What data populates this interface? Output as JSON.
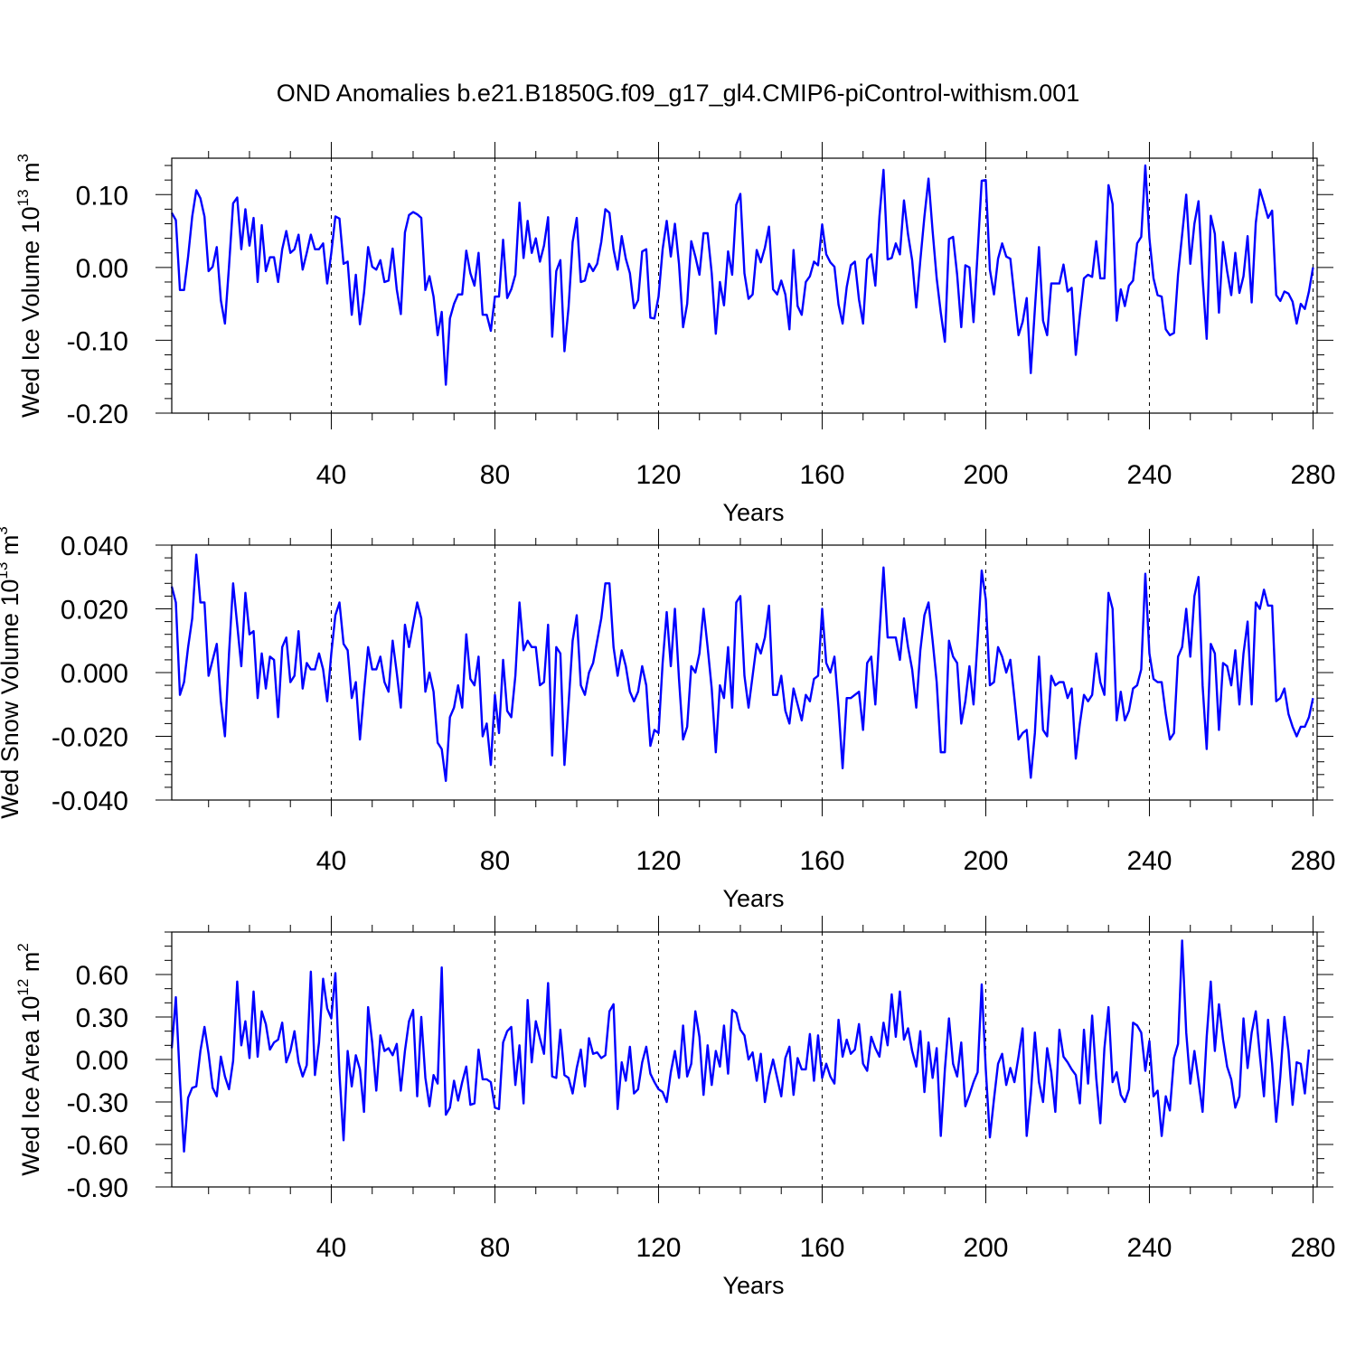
{
  "title": "OND Anomalies b.e21.B1850G.f09_g17_gl4.CMIP6-piControl-withism.001",
  "colors": {
    "line": "#0000ff",
    "axis": "#000000",
    "background": "#ffffff"
  },
  "chart_data": [
    {
      "type": "line",
      "ylabel": "Wed Ice Volume 10",
      "ylabel_exp": "13",
      "ylabel_unit": " m",
      "ylabel_unit_exp": "3",
      "xlabel": "Years",
      "xlim": [
        1,
        281
      ],
      "ylim": [
        -0.2,
        0.15
      ],
      "xticks": [
        40,
        80,
        120,
        160,
        200,
        240,
        280
      ],
      "xtick_labels": [
        "40",
        "80",
        "120",
        "160",
        "200",
        "240",
        "280"
      ],
      "yticks": [
        -0.2,
        -0.1,
        0.0,
        0.1
      ],
      "ytick_labels": [
        "-0.20",
        "-0.10",
        "0.00",
        "0.10"
      ],
      "y_minor_step": 0.02,
      "x_minor_step": 10,
      "grid": "vertical dashed at major x ticks",
      "series": [
        {
          "name": "Wed Ice Volume",
          "x_start": 1,
          "values": [
            0.075,
            0.065,
            -0.031,
            -0.031,
            0.015,
            0.07,
            0.106,
            0.095,
            0.07,
            -0.005,
            0.001,
            0.028,
            -0.045,
            -0.077,
            0.002,
            0.088,
            0.096,
            0.025,
            0.08,
            0.03,
            0.068,
            -0.02,
            0.058,
            -0.005,
            0.014,
            0.014,
            -0.02,
            0.025,
            0.05,
            0.02,
            0.025,
            0.045,
            -0.003,
            0.02,
            0.045,
            0.025,
            0.025,
            0.033,
            -0.022,
            0.02,
            0.07,
            0.067,
            0.005,
            0.008,
            -0.065,
            -0.01,
            -0.078,
            -0.035,
            0.028,
            0.001,
            -0.003,
            0.01,
            -0.02,
            -0.018,
            0.026,
            -0.03,
            -0.064,
            0.048,
            0.072,
            0.076,
            0.073,
            0.068,
            -0.031,
            -0.012,
            -0.04,
            -0.093,
            -0.061,
            -0.161,
            -0.07,
            -0.05,
            -0.037,
            -0.037,
            0.023,
            -0.008,
            -0.025,
            0.02,
            -0.065,
            -0.065,
            -0.087,
            -0.04,
            -0.04,
            0.038,
            -0.042,
            -0.03,
            -0.01,
            0.089,
            0.013,
            0.064,
            0.02,
            0.04,
            0.008,
            0.03,
            0.069,
            -0.095,
            -0.005,
            0.01,
            -0.115,
            -0.055,
            0.035,
            0.068,
            -0.02,
            -0.018,
            0.005,
            -0.005,
            0.005,
            0.035,
            0.08,
            0.075,
            0.025,
            -0.003,
            0.043,
            0.012,
            -0.008,
            -0.056,
            -0.045,
            0.022,
            0.025,
            -0.069,
            -0.07,
            -0.04,
            0.025,
            0.064,
            0.015,
            0.06,
            0.005,
            -0.082,
            -0.05,
            0.036,
            0.015,
            -0.01,
            0.047,
            0.047,
            -0.008,
            -0.091,
            -0.02,
            -0.052,
            0.022,
            -0.01,
            0.086,
            0.101,
            -0.008,
            -0.043,
            -0.037,
            0.024,
            0.007,
            0.027,
            0.056,
            -0.03,
            -0.037,
            -0.018,
            -0.037,
            -0.085,
            0.024,
            -0.053,
            -0.065,
            -0.02,
            -0.012,
            0.008,
            0.003,
            0.059,
            0.018,
            0.007,
            0.001,
            -0.051,
            -0.077,
            -0.027,
            0.003,
            0.008,
            -0.044,
            -0.077,
            0.011,
            0.018,
            -0.025,
            0.07,
            0.134,
            0.011,
            0.013,
            0.033,
            0.018,
            0.092,
            0.045,
            0.01,
            -0.055,
            0.01,
            0.07,
            0.122,
            0.05,
            -0.015,
            -0.062,
            -0.102,
            0.039,
            0.042,
            -0.01,
            -0.082,
            0.003,
            0.0,
            -0.075,
            0.02,
            0.119,
            0.12,
            -0.003,
            -0.037,
            0.012,
            0.033,
            0.015,
            0.012,
            -0.04,
            -0.093,
            -0.075,
            -0.042,
            -0.145,
            -0.057,
            0.028,
            -0.073,
            -0.093,
            -0.022,
            -0.022,
            -0.022,
            0.004,
            -0.033,
            -0.028,
            -0.12,
            -0.065,
            -0.015,
            -0.01,
            -0.013,
            0.036,
            -0.015,
            -0.015,
            0.113,
            0.087,
            -0.073,
            -0.03,
            -0.053,
            -0.025,
            -0.018,
            0.033,
            0.042,
            0.14,
            0.04,
            -0.015,
            -0.038,
            -0.04,
            -0.085,
            -0.093,
            -0.09,
            -0.01,
            0.045,
            0.1,
            0.005,
            0.06,
            0.091,
            -0.015,
            -0.098,
            0.071,
            0.046,
            -0.062,
            0.035,
            -0.005,
            -0.038,
            0.02,
            -0.035,
            -0.012,
            0.043,
            -0.048,
            0.061,
            0.107,
            0.088,
            0.068,
            0.078,
            -0.038,
            -0.046,
            -0.033,
            -0.036,
            -0.047,
            -0.077,
            -0.05,
            -0.057,
            -0.033,
            0.0
          ]
        }
      ]
    },
    {
      "type": "line",
      "ylabel": "Wed Snow Volume 10",
      "ylabel_exp": "13",
      "ylabel_unit": " m",
      "ylabel_unit_exp": "3",
      "xlabel": "Years",
      "xlim": [
        1,
        281
      ],
      "ylim": [
        -0.04,
        0.04
      ],
      "xticks": [
        40,
        80,
        120,
        160,
        200,
        240,
        280
      ],
      "xtick_labels": [
        "40",
        "80",
        "120",
        "160",
        "200",
        "240",
        "280"
      ],
      "yticks": [
        -0.04,
        -0.02,
        0.0,
        0.02,
        0.04
      ],
      "ytick_labels": [
        "-0.040",
        "-0.020",
        "0.000",
        "0.020",
        "0.040"
      ],
      "y_minor_step": 0.004,
      "x_minor_step": 10,
      "grid": "vertical dashed at major x ticks",
      "series": [
        {
          "name": "Wed Snow Volume",
          "x_start": 1,
          "values": [
            0.027,
            0.022,
            -0.007,
            -0.003,
            0.008,
            0.017,
            0.037,
            0.022,
            0.022,
            -0.001,
            0.004,
            0.009,
            -0.009,
            -0.02,
            0.006,
            0.028,
            0.015,
            0.002,
            0.025,
            0.012,
            0.013,
            -0.008,
            0.006,
            -0.005,
            0.005,
            0.004,
            -0.014,
            0.008,
            0.011,
            -0.003,
            -0.001,
            0.013,
            -0.005,
            0.003,
            0.001,
            0.001,
            0.006,
            0.001,
            -0.009,
            0.006,
            0.018,
            0.022,
            0.009,
            0.007,
            -0.008,
            -0.003,
            -0.021,
            -0.006,
            0.008,
            0.001,
            0.001,
            0.005,
            -0.003,
            -0.006,
            0.01,
            0.0,
            -0.011,
            0.015,
            0.008,
            0.015,
            0.022,
            0.017,
            -0.006,
            0.0,
            -0.006,
            -0.022,
            -0.024,
            -0.034,
            -0.014,
            -0.011,
            -0.004,
            -0.011,
            0.012,
            -0.002,
            -0.004,
            0.005,
            -0.02,
            -0.016,
            -0.029,
            -0.007,
            -0.019,
            0.004,
            -0.012,
            -0.014,
            -0.001,
            0.022,
            0.007,
            0.01,
            0.008,
            0.008,
            -0.004,
            -0.003,
            0.015,
            -0.026,
            0.008,
            0.006,
            -0.029,
            -0.01,
            0.01,
            0.018,
            -0.004,
            -0.007,
            0.0,
            0.003,
            0.01,
            0.017,
            0.028,
            0.028,
            0.008,
            -0.001,
            0.007,
            0.002,
            -0.006,
            -0.009,
            -0.006,
            0.002,
            -0.004,
            -0.023,
            -0.018,
            -0.019,
            0.003,
            0.019,
            0.002,
            0.02,
            -0.002,
            -0.021,
            -0.017,
            0.002,
            0.0,
            0.006,
            0.02,
            0.008,
            -0.005,
            -0.025,
            -0.004,
            -0.008,
            0.008,
            -0.011,
            0.022,
            0.024,
            -0.001,
            -0.011,
            -0.001,
            0.009,
            0.006,
            0.011,
            0.021,
            -0.007,
            -0.007,
            -0.001,
            -0.012,
            -0.016,
            -0.005,
            -0.01,
            -0.015,
            -0.007,
            -0.009,
            -0.002,
            -0.001,
            0.02,
            0.003,
            0.0,
            0.005,
            -0.011,
            -0.03,
            -0.008,
            -0.008,
            -0.007,
            -0.006,
            -0.018,
            0.003,
            0.005,
            -0.01,
            0.012,
            0.033,
            0.011,
            0.011,
            0.011,
            0.004,
            0.017,
            0.008,
            0.001,
            -0.011,
            0.007,
            0.018,
            0.022,
            0.01,
            -0.003,
            -0.025,
            -0.025,
            0.01,
            0.005,
            0.003,
            -0.016,
            -0.009,
            0.002,
            -0.01,
            0.01,
            0.032,
            0.023,
            -0.004,
            -0.003,
            0.008,
            0.005,
            0.0,
            0.004,
            -0.008,
            -0.021,
            -0.019,
            -0.018,
            -0.033,
            -0.019,
            0.005,
            -0.018,
            -0.02,
            -0.001,
            -0.004,
            -0.003,
            -0.003,
            -0.008,
            -0.005,
            -0.027,
            -0.016,
            -0.007,
            -0.009,
            -0.007,
            0.006,
            -0.003,
            -0.007,
            0.025,
            0.02,
            -0.015,
            -0.006,
            -0.015,
            -0.012,
            -0.005,
            -0.004,
            0.001,
            0.031,
            0.006,
            -0.002,
            -0.003,
            -0.003,
            -0.013,
            -0.021,
            -0.019,
            0.005,
            0.008,
            0.02,
            0.005,
            0.024,
            0.03,
            -0.004,
            -0.024,
            0.009,
            0.006,
            -0.018,
            0.003,
            0.002,
            -0.004,
            0.007,
            -0.01,
            0.006,
            0.016,
            -0.01,
            0.022,
            0.02,
            0.026,
            0.021,
            0.021,
            -0.009,
            -0.008,
            -0.005,
            -0.013,
            -0.017,
            -0.02,
            -0.017,
            -0.017,
            -0.014,
            -0.008
          ]
        }
      ]
    },
    {
      "type": "line",
      "ylabel": "Wed Ice Area 10",
      "ylabel_exp": "12",
      "ylabel_unit": " m",
      "ylabel_unit_exp": "2",
      "xlabel": "Years",
      "xlim": [
        1,
        281
      ],
      "ylim": [
        -0.9,
        0.9
      ],
      "xticks": [
        40,
        80,
        120,
        160,
        200,
        240,
        280
      ],
      "xtick_labels": [
        "40",
        "80",
        "120",
        "160",
        "200",
        "240",
        "280"
      ],
      "yticks": [
        -0.9,
        -0.6,
        -0.3,
        0.0,
        0.3,
        0.6
      ],
      "ytick_labels": [
        "-0.90",
        "-0.60",
        "-0.30",
        "0.00",
        "0.30",
        "0.60"
      ],
      "y_minor_step": 0.1,
      "x_minor_step": 10,
      "grid": "vertical dashed at major x ticks",
      "series": [
        {
          "name": "Wed Ice Area",
          "x_start": 1,
          "values": [
            0.08,
            0.44,
            -0.15,
            -0.65,
            -0.27,
            -0.2,
            -0.19,
            0.06,
            0.23,
            0.04,
            -0.2,
            -0.26,
            0.02,
            -0.12,
            -0.21,
            -0.01,
            0.55,
            0.1,
            0.27,
            0.01,
            0.48,
            0.02,
            0.34,
            0.25,
            0.07,
            0.12,
            0.14,
            0.26,
            -0.02,
            0.06,
            0.2,
            -0.02,
            -0.12,
            -0.04,
            0.62,
            -0.11,
            0.12,
            0.57,
            0.36,
            0.29,
            0.61,
            -0.1,
            -0.57,
            0.06,
            -0.19,
            0.03,
            -0.07,
            -0.37,
            0.37,
            0.12,
            -0.22,
            0.17,
            0.06,
            0.08,
            0.03,
            0.11,
            -0.22,
            0.06,
            0.27,
            0.35,
            -0.26,
            0.3,
            -0.13,
            -0.33,
            -0.11,
            -0.17,
            0.65,
            -0.39,
            -0.34,
            -0.15,
            -0.29,
            -0.16,
            -0.05,
            -0.32,
            -0.31,
            0.07,
            -0.14,
            -0.14,
            -0.16,
            -0.34,
            -0.35,
            0.12,
            0.2,
            0.23,
            -0.18,
            0.1,
            -0.31,
            0.42,
            -0.02,
            0.27,
            0.15,
            0.04,
            0.54,
            -0.12,
            -0.13,
            0.21,
            -0.11,
            -0.13,
            -0.24,
            -0.06,
            0.07,
            -0.19,
            0.15,
            0.04,
            0.05,
            0.01,
            0.03,
            0.34,
            0.39,
            -0.35,
            -0.02,
            -0.15,
            0.09,
            -0.24,
            -0.21,
            -0.02,
            0.09,
            -0.1,
            -0.16,
            -0.21,
            -0.23,
            -0.3,
            -0.09,
            0.06,
            -0.13,
            0.24,
            -0.12,
            -0.03,
            0.34,
            0.16,
            -0.25,
            0.1,
            -0.18,
            0.06,
            -0.05,
            0.24,
            -0.1,
            0.35,
            0.33,
            0.21,
            0.17,
            0.0,
            0.05,
            -0.15,
            0.04,
            -0.3,
            -0.12,
            0.0,
            -0.13,
            -0.26,
            0.01,
            0.09,
            -0.25,
            0.01,
            -0.07,
            -0.07,
            0.18,
            -0.15,
            0.17,
            -0.13,
            -0.03,
            -0.12,
            -0.17,
            0.28,
            0.02,
            0.14,
            0.04,
            0.07,
            0.25,
            -0.03,
            -0.08,
            0.16,
            0.08,
            0.02,
            0.26,
            0.1,
            0.46,
            0.16,
            0.48,
            0.14,
            0.22,
            0.06,
            -0.05,
            0.2,
            -0.23,
            0.12,
            -0.13,
            0.08,
            -0.54,
            -0.07,
            0.29,
            -0.03,
            -0.12,
            0.12,
            -0.33,
            -0.25,
            -0.16,
            -0.09,
            0.53,
            -0.07,
            -0.55,
            -0.28,
            -0.03,
            0.04,
            -0.18,
            -0.06,
            -0.16,
            0.02,
            0.22,
            -0.54,
            -0.25,
            0.19,
            -0.16,
            -0.3,
            0.08,
            -0.09,
            -0.37,
            0.21,
            0.02,
            -0.02,
            -0.07,
            -0.11,
            -0.31,
            0.21,
            -0.17,
            0.31,
            -0.13,
            -0.45,
            0.08,
            0.37,
            -0.16,
            -0.09,
            -0.25,
            -0.3,
            -0.21,
            0.26,
            0.24,
            0.19,
            -0.08,
            0.13,
            -0.26,
            -0.22,
            -0.54,
            -0.26,
            -0.36,
            0.01,
            0.11,
            0.84,
            0.19,
            -0.17,
            0.06,
            -0.15,
            -0.37,
            0.16,
            0.55,
            0.06,
            0.39,
            0.14,
            -0.05,
            -0.14,
            -0.34,
            -0.26,
            0.29,
            -0.06,
            0.19,
            0.34,
            0.03,
            -0.26,
            0.28,
            -0.03,
            -0.44,
            -0.12,
            0.3,
            0.06,
            -0.32,
            -0.02,
            -0.03,
            -0.24,
            0.07
          ]
        }
      ]
    }
  ]
}
